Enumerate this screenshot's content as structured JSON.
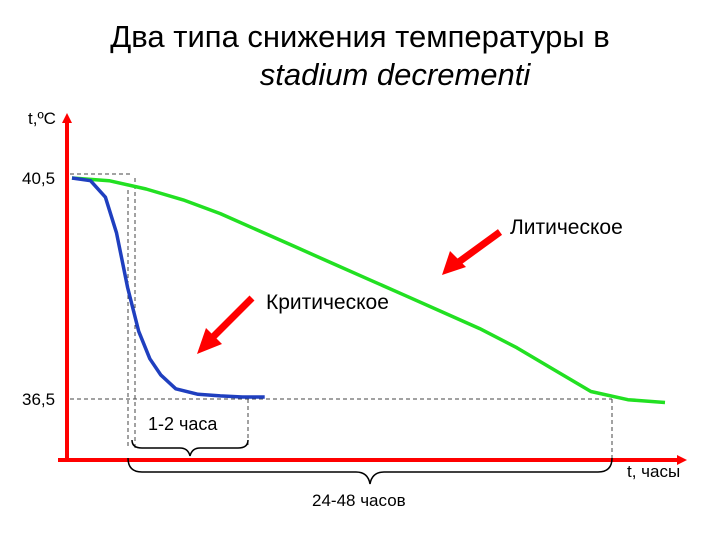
{
  "title": {
    "line1": "Два типа снижения температуры в",
    "line2": "stadium decrementi"
  },
  "chart_data": {
    "type": "line",
    "title": "Два типа снижения температуры в stadium decrementi",
    "ylabel": "t,ºC",
    "xlabel": "t, часы",
    "ytick_labels": [
      "40,5",
      "36,5"
    ],
    "annotations": {
      "critical_label": "Критическое",
      "lytic_label": "Литическое",
      "short_interval": "1-2 часа",
      "long_interval": "24-48 часов"
    },
    "series": [
      {
        "name": "Критическое",
        "color": "#1f3fbf",
        "x": [
          0,
          0.05,
          0.09,
          0.12,
          0.15,
          0.18,
          0.21,
          0.24,
          0.28,
          0.34,
          0.4,
          0.46,
          0.52
        ],
        "y": [
          40.5,
          40.45,
          40.15,
          39.5,
          38.5,
          37.7,
          37.2,
          36.9,
          36.65,
          36.55,
          36.52,
          36.5,
          36.5
        ]
      },
      {
        "name": "Литическое",
        "color": "#22e022",
        "x": [
          0,
          0.1,
          0.2,
          0.3,
          0.4,
          0.5,
          0.6,
          0.7,
          0.8,
          0.9,
          1.0,
          1.1,
          1.2,
          1.3,
          1.4,
          1.5,
          1.6
        ],
        "y": [
          40.5,
          40.45,
          40.3,
          40.1,
          39.85,
          39.55,
          39.25,
          38.95,
          38.65,
          38.35,
          38.05,
          37.75,
          37.4,
          37.0,
          36.6,
          36.45,
          36.4
        ]
      }
    ],
    "colors": {
      "axis": "#ff0000",
      "arrow": "#ff0000",
      "guide": "#444444"
    }
  }
}
